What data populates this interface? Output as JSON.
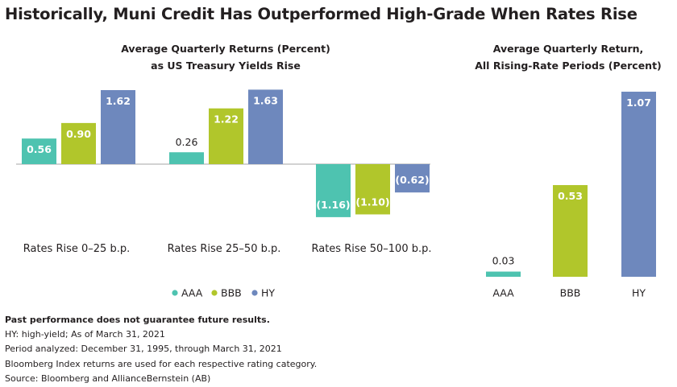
{
  "title": "Historically, Muni Credit Has Outperformed High-Grade When Rates Rise",
  "colors": {
    "AAA": "#4ec3b0",
    "BBB": "#b1c62b",
    "HY": "#6e88bd",
    "axis": "#a6a6a6",
    "text": "#231f20"
  },
  "chart_data": [
    {
      "type": "bar",
      "title": "Average Quarterly Returns (Percent)",
      "subtitle": "as US Treasury Yields Rise",
      "categories": [
        "Rates Rise 0–25 b.p.",
        "Rates Rise 25–50 b.p.",
        "Rates Rise 50–100 b.p."
      ],
      "series": [
        {
          "name": "AAA",
          "values": [
            0.56,
            0.26,
            -1.16
          ],
          "labels": [
            "0.56",
            "0.26",
            "(1.16)"
          ]
        },
        {
          "name": "BBB",
          "values": [
            0.9,
            1.22,
            -1.1
          ],
          "labels": [
            "0.90",
            "1.22",
            "(1.10)"
          ]
        },
        {
          "name": "HY",
          "values": [
            1.62,
            1.63,
            -0.62
          ],
          "labels": [
            "1.62",
            "1.63",
            "(0.62)"
          ]
        }
      ],
      "legend": {
        "position": "bottom",
        "items": [
          "AAA",
          "BBB",
          "HY"
        ]
      },
      "grid": false
    },
    {
      "type": "bar",
      "title": "Average Quarterly Return,",
      "subtitle": "All Rising-Rate Periods (Percent)",
      "categories": [
        "AAA",
        "BBB",
        "HY"
      ],
      "values": [
        0.03,
        0.53,
        1.07
      ],
      "labels": [
        "0.03",
        "0.53",
        "1.07"
      ],
      "grid": false
    }
  ],
  "footnotes": {
    "disclaimer": "Past performance does not guarantee future results.",
    "lines": [
      "HY: high-yield; As of March 31, 2021",
      "Period analyzed: December 31, 1995, through March 31, 2021",
      "Bloomberg Index returns are used for each respective rating category.",
      "Source: Bloomberg and AllianceBernstein (AB)"
    ]
  }
}
